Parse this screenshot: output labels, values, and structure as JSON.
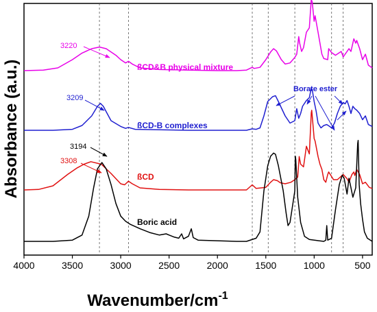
{
  "chart_data": {
    "type": "line",
    "xlabel": "Wavenumber/cm",
    "xlabel_sup": "-1",
    "ylabel": "Absorbance (a.u.)",
    "xlim": [
      4000,
      400
    ],
    "x_reversed": true,
    "x_ticks": [
      "4000",
      "3500",
      "3000",
      "2500",
      "2000",
      "1500",
      "1000",
      "500"
    ],
    "y_ticks_shown": false,
    "reference_lines_cm": [
      3220,
      2920,
      1640,
      1475,
      1200,
      820,
      700
    ],
    "annotations": [
      {
        "text": "3220",
        "color": "#e800e8",
        "x": 3220
      },
      {
        "text": "3209",
        "color": "#1f1fd0",
        "x": 3209
      },
      {
        "text": "3194",
        "color": "#000000",
        "x": 3194
      },
      {
        "text": "3308",
        "color": "#e01010",
        "x": 3308
      },
      {
        "text": "Borate ester",
        "color": "#1f1fd0"
      }
    ],
    "series": [
      {
        "name": "ßCD&B physical mixture",
        "color": "#e800e8",
        "points": [
          [
            4000,
            0.0
          ],
          [
            3800,
            0.01
          ],
          [
            3650,
            0.05
          ],
          [
            3500,
            0.2
          ],
          [
            3400,
            0.32
          ],
          [
            3300,
            0.4
          ],
          [
            3220,
            0.43
          ],
          [
            3150,
            0.4
          ],
          [
            3050,
            0.28
          ],
          [
            3000,
            0.2
          ],
          [
            2950,
            0.14
          ],
          [
            2920,
            0.17
          ],
          [
            2880,
            0.12
          ],
          [
            2800,
            0.05
          ],
          [
            2600,
            0.02
          ],
          [
            2300,
            0.01
          ],
          [
            2000,
            0.0
          ],
          [
            1800,
            0.0
          ],
          [
            1700,
            0.01
          ],
          [
            1640,
            0.06
          ],
          [
            1620,
            0.04
          ],
          [
            1560,
            0.06
          ],
          [
            1500,
            0.2
          ],
          [
            1450,
            0.34
          ],
          [
            1420,
            0.4
          ],
          [
            1390,
            0.36
          ],
          [
            1340,
            0.2
          ],
          [
            1300,
            0.12
          ],
          [
            1250,
            0.14
          ],
          [
            1200,
            0.24
          ],
          [
            1180,
            0.3
          ],
          [
            1160,
            0.62
          ],
          [
            1150,
            0.5
          ],
          [
            1130,
            0.35
          ],
          [
            1110,
            0.42
          ],
          [
            1080,
            0.7
          ],
          [
            1050,
            0.78
          ],
          [
            1030,
            1.3
          ],
          [
            1020,
            1.25
          ],
          [
            1000,
            0.9
          ],
          [
            990,
            1.0
          ],
          [
            960,
            0.7
          ],
          [
            920,
            0.3
          ],
          [
            900,
            0.22
          ],
          [
            860,
            0.2
          ],
          [
            850,
            0.4
          ],
          [
            820,
            0.33
          ],
          [
            780,
            0.28
          ],
          [
            720,
            0.35
          ],
          [
            700,
            0.25
          ],
          [
            640,
            0.4
          ],
          [
            620,
            0.35
          ],
          [
            590,
            0.58
          ],
          [
            570,
            0.5
          ],
          [
            560,
            0.55
          ],
          [
            530,
            0.4
          ],
          [
            500,
            0.2
          ],
          [
            470,
            0.3
          ],
          [
            440,
            0.1
          ],
          [
            400,
            0.05
          ]
        ]
      },
      {
        "name": "ßCD-B complexes",
        "color": "#1f1fd0",
        "points": [
          [
            4000,
            0.0
          ],
          [
            3700,
            0.0
          ],
          [
            3500,
            0.02
          ],
          [
            3400,
            0.1
          ],
          [
            3300,
            0.3
          ],
          [
            3240,
            0.5
          ],
          [
            3209,
            0.56
          ],
          [
            3180,
            0.5
          ],
          [
            3100,
            0.2
          ],
          [
            3000,
            0.08
          ],
          [
            2950,
            0.04
          ],
          [
            2920,
            0.06
          ],
          [
            2850,
            0.02
          ],
          [
            2600,
            0.01
          ],
          [
            2300,
            0.0
          ],
          [
            2000,
            0.0
          ],
          [
            1700,
            0.0
          ],
          [
            1640,
            0.03
          ],
          [
            1600,
            0.02
          ],
          [
            1560,
            0.05
          ],
          [
            1520,
            0.3
          ],
          [
            1480,
            0.6
          ],
          [
            1430,
            0.7
          ],
          [
            1400,
            0.72
          ],
          [
            1370,
            0.6
          ],
          [
            1300,
            0.3
          ],
          [
            1250,
            0.15
          ],
          [
            1200,
            0.2
          ],
          [
            1180,
            0.45
          ],
          [
            1160,
            0.25
          ],
          [
            1140,
            0.35
          ],
          [
            1120,
            0.5
          ],
          [
            1080,
            0.62
          ],
          [
            1050,
            0.68
          ],
          [
            1030,
            0.88
          ],
          [
            1020,
            0.85
          ],
          [
            1000,
            0.6
          ],
          [
            980,
            0.4
          ],
          [
            960,
            0.15
          ],
          [
            930,
            0.05
          ],
          [
            900,
            0.1
          ],
          [
            870,
            0.12
          ],
          [
            840,
            0.08
          ],
          [
            820,
            0.05
          ],
          [
            790,
            0.15
          ],
          [
            760,
            0.35
          ],
          [
            730,
            0.5
          ],
          [
            700,
            0.58
          ],
          [
            680,
            0.55
          ],
          [
            660,
            0.62
          ],
          [
            640,
            0.5
          ],
          [
            620,
            0.35
          ],
          [
            600,
            0.5
          ],
          [
            580,
            0.45
          ],
          [
            560,
            0.42
          ],
          [
            530,
            0.35
          ],
          [
            500,
            0.22
          ],
          [
            470,
            0.3
          ],
          [
            440,
            0.12
          ],
          [
            400,
            0.08
          ]
        ]
      },
      {
        "name": "ßCD",
        "color": "#e01010",
        "points": [
          [
            4000,
            0.0
          ],
          [
            3850,
            0.01
          ],
          [
            3700,
            0.08
          ],
          [
            3550,
            0.3
          ],
          [
            3450,
            0.43
          ],
          [
            3380,
            0.5
          ],
          [
            3308,
            0.55
          ],
          [
            3200,
            0.5
          ],
          [
            3100,
            0.32
          ],
          [
            3000,
            0.12
          ],
          [
            2960,
            0.1
          ],
          [
            2920,
            0.17
          ],
          [
            2880,
            0.12
          ],
          [
            2800,
            0.04
          ],
          [
            2600,
            0.01
          ],
          [
            2300,
            0.0
          ],
          [
            2000,
            0.0
          ],
          [
            1700,
            0.0
          ],
          [
            1640,
            0.1
          ],
          [
            1600,
            0.03
          ],
          [
            1500,
            0.05
          ],
          [
            1450,
            0.15
          ],
          [
            1420,
            0.2
          ],
          [
            1380,
            0.18
          ],
          [
            1350,
            0.14
          ],
          [
            1300,
            0.12
          ],
          [
            1240,
            0.15
          ],
          [
            1200,
            0.2
          ],
          [
            1170,
            0.25
          ],
          [
            1155,
            0.65
          ],
          [
            1140,
            0.5
          ],
          [
            1110,
            0.45
          ],
          [
            1080,
            0.85
          ],
          [
            1050,
            0.7
          ],
          [
            1030,
            1.5
          ],
          [
            1025,
            1.55
          ],
          [
            1000,
            1.0
          ],
          [
            990,
            0.95
          ],
          [
            960,
            0.65
          ],
          [
            940,
            0.5
          ],
          [
            920,
            0.4
          ],
          [
            900,
            0.2
          ],
          [
            880,
            0.15
          ],
          [
            860,
            0.3
          ],
          [
            850,
            0.35
          ],
          [
            800,
            0.2
          ],
          [
            760,
            0.2
          ],
          [
            700,
            0.3
          ],
          [
            660,
            0.22
          ],
          [
            640,
            0.15
          ],
          [
            610,
            0.3
          ],
          [
            590,
            0.35
          ],
          [
            580,
            0.28
          ],
          [
            560,
            0.4
          ],
          [
            530,
            0.3
          ],
          [
            500,
            0.12
          ],
          [
            470,
            0.15
          ],
          [
            430,
            0.05
          ],
          [
            400,
            0.03
          ]
        ]
      },
      {
        "name": "Boric acid",
        "color": "#000000",
        "points": [
          [
            4000,
            0.0
          ],
          [
            3700,
            0.0
          ],
          [
            3500,
            0.02
          ],
          [
            3400,
            0.1
          ],
          [
            3330,
            0.4
          ],
          [
            3280,
            0.85
          ],
          [
            3240,
            1.15
          ],
          [
            3194,
            1.25
          ],
          [
            3150,
            1.15
          ],
          [
            3100,
            0.9
          ],
          [
            3050,
            0.6
          ],
          [
            3000,
            0.4
          ],
          [
            2950,
            0.32
          ],
          [
            2900,
            0.27
          ],
          [
            2800,
            0.2
          ],
          [
            2700,
            0.14
          ],
          [
            2600,
            0.1
          ],
          [
            2530,
            0.12
          ],
          [
            2500,
            0.1
          ],
          [
            2450,
            0.07
          ],
          [
            2400,
            0.05
          ],
          [
            2370,
            0.12
          ],
          [
            2350,
            0.04
          ],
          [
            2300,
            0.08
          ],
          [
            2270,
            0.2
          ],
          [
            2250,
            0.06
          ],
          [
            2200,
            0.02
          ],
          [
            2000,
            0.01
          ],
          [
            1800,
            0.0
          ],
          [
            1700,
            0.0
          ],
          [
            1600,
            0.05
          ],
          [
            1560,
            0.15
          ],
          [
            1520,
            0.8
          ],
          [
            1480,
            1.2
          ],
          [
            1450,
            1.35
          ],
          [
            1420,
            1.4
          ],
          [
            1400,
            1.38
          ],
          [
            1370,
            1.2
          ],
          [
            1320,
            0.8
          ],
          [
            1290,
            0.45
          ],
          [
            1270,
            0.25
          ],
          [
            1250,
            0.3
          ],
          [
            1200,
            0.8
          ],
          [
            1195,
            1.35
          ],
          [
            1190,
            1.3
          ],
          [
            1170,
            0.7
          ],
          [
            1140,
            0.3
          ],
          [
            1100,
            0.08
          ],
          [
            1050,
            0.03
          ],
          [
            950,
            0.01
          ],
          [
            900,
            0.0
          ],
          [
            880,
            0.02
          ],
          [
            870,
            0.25
          ],
          [
            860,
            0.02
          ],
          [
            820,
            0.05
          ],
          [
            780,
            0.5
          ],
          [
            740,
            0.9
          ],
          [
            710,
            1.05
          ],
          [
            690,
            1.0
          ],
          [
            660,
            0.75
          ],
          [
            640,
            1.0
          ],
          [
            620,
            0.85
          ],
          [
            600,
            0.7
          ],
          [
            570,
            0.85
          ],
          [
            550,
            1.55
          ],
          [
            545,
            1.6
          ],
          [
            535,
            0.9
          ],
          [
            520,
            0.6
          ],
          [
            500,
            0.35
          ],
          [
            480,
            0.15
          ],
          [
            450,
            0.05
          ],
          [
            400,
            0.0
          ]
        ]
      }
    ]
  }
}
